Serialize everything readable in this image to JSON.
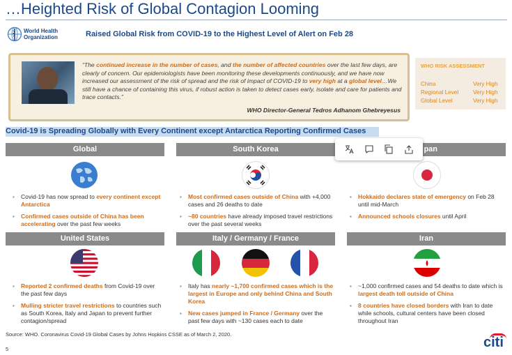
{
  "title": "…Heighted Risk of Global Contagion Looming",
  "who_logo": {
    "icon": "who-emblem-icon",
    "line1": "World Health",
    "line2": "Organization"
  },
  "subtitle": "Raised Global Risk from COVID-19 to the Highest Level of Alert on Feb 28",
  "quote": {
    "p1": "“The ",
    "h1": "continued increase in the number of cases",
    "p2": ", and ",
    "h2": "the number of affected countries",
    "p3": " over the last few days, are clearly of concern. Our epidemiologists have been monitoring these developments continuously, and we have now increased our assessment of the risk of spread and the risk of impact of COVID-19 to ",
    "h3": "very high",
    "p4": " at a ",
    "h4": "global level",
    "p5": "…We still have a chance of containing this virus, if robust action is taken to detect cases early, isolate and care for patients and trace contacts.”",
    "attribution": "WHO Director-General Tedros Adhanom Ghebreyesus"
  },
  "risk_assessment": {
    "heading": "WHO RISK ASSESSMENT",
    "rows": [
      {
        "label": "China",
        "value": "Very High"
      },
      {
        "label": "Regional Level",
        "value": "Very High"
      },
      {
        "label": "Global Level",
        "value": "Very High"
      }
    ]
  },
  "highlight_band": "Covid-19 is Spreading Globally with Every Continent except Antarctica Reporting Confirmed Cases",
  "toolbar": {
    "icons": [
      "translate-icon",
      "comment-icon",
      "copy-icon",
      "share-icon"
    ]
  },
  "panels": {
    "global": {
      "header": "Global",
      "b1": {
        "t1": "Covid-19 has now spread to ",
        "h1": "every continent except Antarctica",
        "t2": ""
      },
      "b2": {
        "t1": "",
        "h1": "Confirmed cases outside of China has been accelerating",
        "t2": " over the past few weeks"
      }
    },
    "south_korea": {
      "header": "South Korea",
      "b1": {
        "t1": "",
        "h1": "Most confirmed cases outside of China",
        "t2": " with +4,000 cases and 26 deaths to date"
      },
      "b2": {
        "t1": "",
        "h1": "~80 countries",
        "t2": " have already imposed travel restrictions over the past several weeks"
      }
    },
    "japan": {
      "header": "pan",
      "b1": {
        "t1": "",
        "h1": "Hokkaido declares state of emergency",
        "t2": " on Feb 28 until mid-March"
      },
      "b2": {
        "t1": "",
        "h1": "Announced schools closures",
        "t2": " until April"
      }
    },
    "us": {
      "header": "United States",
      "b1": {
        "t1": "",
        "h1": "Reported 2 confirmed deaths",
        "t2": " from Covid-19 over the past few days"
      },
      "b2": {
        "t1": "",
        "h1": "Mulling stricter travel restrictions",
        "t2": " to countries such as South Korea, Italy and Japan to prevent further contagion/spread"
      }
    },
    "europe": {
      "header": "Italy / Germany / France",
      "b1": {
        "t1": "Italy has ",
        "h1": "nearly ~1,700 confirmed cases which is the largest in Europe and only behind China and South Korea",
        "t2": ""
      },
      "b2": {
        "t1": "",
        "h1": "New cases jumped in France / Germany",
        "t2": " over the past few days with ~130 cases each to date"
      }
    },
    "iran": {
      "header": "Iran",
      "b1": {
        "t1": "~1,000 confirmed cases and 54 deaths to date which is ",
        "h1": "largest death toll outside of China",
        "t2": ""
      },
      "b2": {
        "t1": "",
        "h1": "8 countries have closed borders",
        "t2": " with Iran to date while schools, cultural centers have been closed throughout Iran"
      }
    }
  },
  "source": "Source: WHO. Coronavirus Covid-19 Global Cases by Johns Hopkins CSSE as of March 2, 2020.",
  "page_number": "5",
  "brand": "citi"
}
